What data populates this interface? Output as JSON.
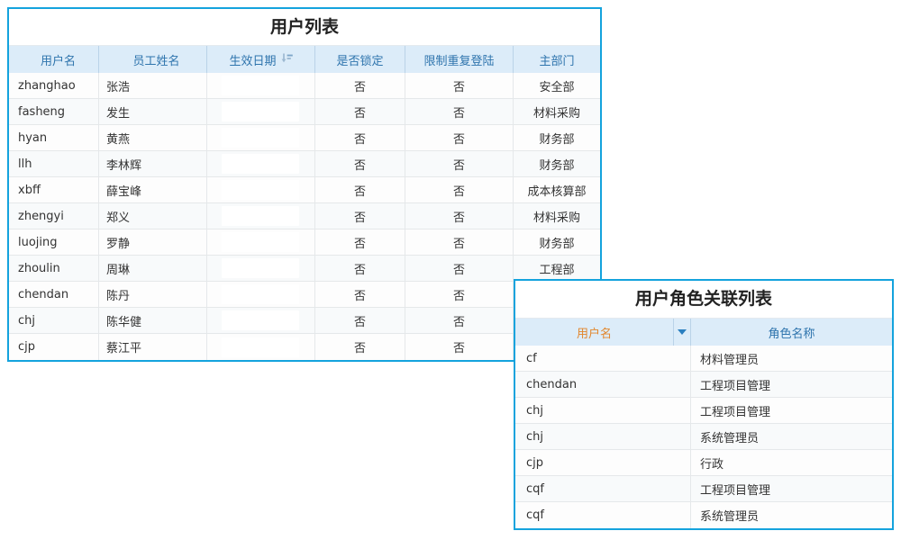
{
  "colors": {
    "border": "#14a3dd",
    "header_bg": "#dcecf9",
    "header_text": "#2e74ad",
    "header_orange": "#e2862c",
    "header_divider": "#bad3e8",
    "divider": "#e5e8ea",
    "row_bg": "#fdfdfd",
    "row_alt_bg": "#f8fafb",
    "filter_arrow": "#2a7fc0",
    "sort_icon": "#93b3cd"
  },
  "icons": {
    "sort_icon": "sort-descending-amount",
    "filter_icon": "dropdown-arrow"
  },
  "user_table": {
    "title": "用户列表",
    "columns": [
      "用户名",
      "员工姓名",
      "生效日期",
      "是否锁定",
      "限制重复登陆",
      "主部门"
    ],
    "sorted_column": "生效日期",
    "rows": [
      {
        "username": "zhanghao",
        "name": "张浩",
        "date": "",
        "locked": "否",
        "restrict": "否",
        "dept": "安全部"
      },
      {
        "username": "fasheng",
        "name": "发生",
        "date": "",
        "locked": "否",
        "restrict": "否",
        "dept": "材料采购"
      },
      {
        "username": "hyan",
        "name": "黄燕",
        "date": "",
        "locked": "否",
        "restrict": "否",
        "dept": "财务部"
      },
      {
        "username": "llh",
        "name": "李林辉",
        "date": "",
        "locked": "否",
        "restrict": "否",
        "dept": "财务部"
      },
      {
        "username": "xbff",
        "name": "薛宝峰",
        "date": "",
        "locked": "否",
        "restrict": "否",
        "dept": "成本核算部"
      },
      {
        "username": "zhengyi",
        "name": "郑义",
        "date": "",
        "locked": "否",
        "restrict": "否",
        "dept": "材料采购"
      },
      {
        "username": "luojing",
        "name": "罗静",
        "date": "",
        "locked": "否",
        "restrict": "否",
        "dept": "财务部"
      },
      {
        "username": "zhoulin",
        "name": "周琳",
        "date": "",
        "locked": "否",
        "restrict": "否",
        "dept": "工程部"
      },
      {
        "username": "chendan",
        "name": "陈丹",
        "date": "",
        "locked": "否",
        "restrict": "否",
        "dept": ""
      },
      {
        "username": "chj",
        "name": "陈华健",
        "date": "",
        "locked": "否",
        "restrict": "否",
        "dept": ""
      },
      {
        "username": "cjp",
        "name": "蔡江平",
        "date": "",
        "locked": "否",
        "restrict": "否",
        "dept": ""
      }
    ]
  },
  "role_table": {
    "title": "用户角色关联列表",
    "columns": [
      "用户名",
      "角色名称"
    ],
    "rows": [
      {
        "username": "cf",
        "role": "材料管理员"
      },
      {
        "username": "chendan",
        "role": "工程项目管理"
      },
      {
        "username": "chj",
        "role": "工程项目管理"
      },
      {
        "username": "chj",
        "role": "系统管理员"
      },
      {
        "username": "cjp",
        "role": "行政"
      },
      {
        "username": "cqf",
        "role": "工程项目管理"
      },
      {
        "username": "cqf",
        "role": "系统管理员"
      }
    ]
  }
}
